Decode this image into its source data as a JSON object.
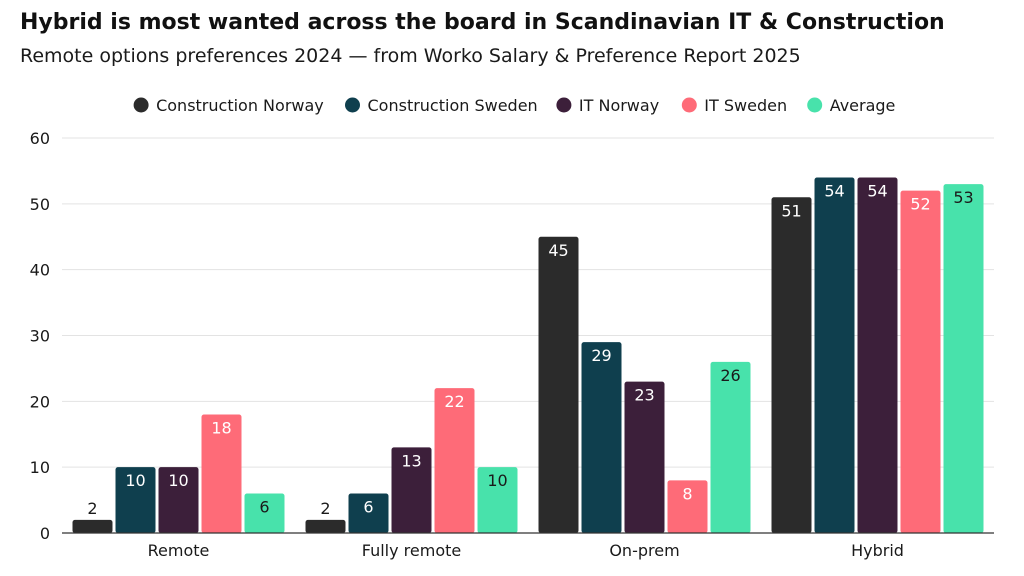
{
  "title": "Hybrid is most wanted across the board in Scandinavian IT & Construction",
  "subtitle": "Remote options preferences 2024 — from Worko Salary & Preference Report 2025",
  "chart_data": {
    "type": "bar",
    "categories": [
      "Remote",
      "Fully remote",
      "On-prem",
      "Hybrid"
    ],
    "series": [
      {
        "name": "Construction Norway",
        "color": "#2b2b2b",
        "values": [
          2,
          2,
          45,
          51
        ]
      },
      {
        "name": "Construction Sweden",
        "color": "#0f3f4e",
        "values": [
          10,
          6,
          29,
          54
        ]
      },
      {
        "name": "IT Norway",
        "color": "#3c1f3a",
        "values": [
          10,
          13,
          23,
          54
        ]
      },
      {
        "name": "IT Sweden",
        "color": "#fe6b78",
        "values": [
          18,
          22,
          8,
          52
        ]
      },
      {
        "name": "Average",
        "color": "#48e2ab",
        "values": [
          6,
          10,
          26,
          53
        ]
      }
    ],
    "ylim": [
      0,
      60
    ],
    "yticks": [
      0,
      10,
      20,
      30,
      40,
      50,
      60
    ],
    "grid": true,
    "legend": "top",
    "data_labels": true,
    "label_colors": {
      "dark": "#ffffff",
      "light": "#1a1a1a"
    }
  }
}
